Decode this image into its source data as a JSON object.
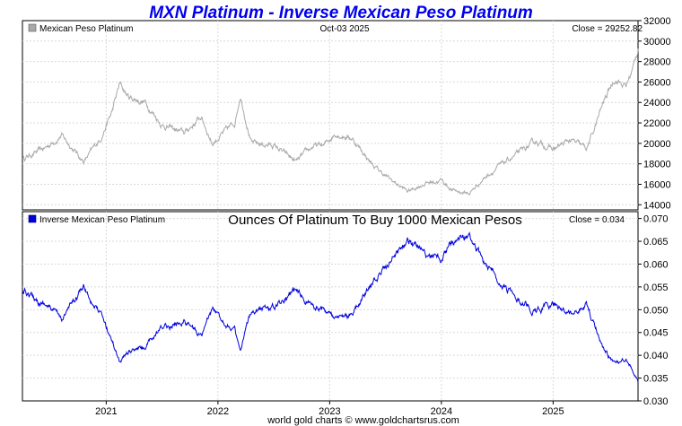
{
  "chart_data": {
    "type": "line",
    "title": "MXN Platinum - Inverse Mexican Peso Platinum",
    "date_label": "Oct-03  2025",
    "footer": "world gold charts © www.goldchartsrus.com",
    "x_ticks": [
      "2021",
      "2022",
      "2023",
      "2024",
      "2025"
    ],
    "x_tick_values": [
      2021.0,
      2022.0,
      2023.0,
      2024.0,
      2025.0
    ],
    "xlim": [
      2020.25,
      2025.76
    ],
    "colors": {
      "top_series": "#a9a9a9",
      "bottom_series": "#0000dd",
      "grid": "#d9d9d9",
      "title": "#0000ee"
    },
    "panels": [
      {
        "legend": "Mexican Peso Platinum",
        "subtitle": "",
        "close_label": "Close = 29252.82",
        "ylim": [
          13500,
          32000
        ],
        "y_ticks": [
          "32000",
          "30000",
          "28000",
          "26000",
          "24000",
          "22000",
          "20000",
          "18000",
          "16000",
          "14000"
        ],
        "y_tick_values": [
          32000,
          30000,
          28000,
          26000,
          24000,
          22000,
          20000,
          18000,
          16000,
          14000
        ],
        "x": [
          2020.25,
          2020.45,
          2020.6,
          2020.8,
          2020.95,
          2021.05,
          2021.12,
          2021.2,
          2021.35,
          2021.5,
          2021.7,
          2021.85,
          2021.95,
          2022.05,
          2022.15,
          2022.2,
          2022.3,
          2022.5,
          2022.7,
          2022.85,
          2022.95,
          2023.05,
          2023.2,
          2023.4,
          2023.55,
          2023.7,
          2023.85,
          2024.0,
          2024.1,
          2024.25,
          2024.4,
          2024.55,
          2024.7,
          2024.85,
          2025.0,
          2025.15,
          2025.3,
          2025.35,
          2025.45,
          2025.55,
          2025.65,
          2025.72,
          2025.76
        ],
        "values": [
          18500,
          19500,
          20800,
          18200,
          20500,
          23000,
          25800,
          24500,
          24000,
          21800,
          21000,
          22600,
          20000,
          21000,
          22000,
          24800,
          20000,
          19800,
          18200,
          19700,
          19800,
          21000,
          20500,
          17700,
          16400,
          15300,
          16100,
          16400,
          15400,
          15100,
          16800,
          18000,
          19100,
          20200,
          19400,
          20300,
          19500,
          20800,
          24000,
          26400,
          25500,
          27500,
          29252.82
        ]
      },
      {
        "legend": "Inverse Mexican Peso Platinum",
        "subtitle": "Ounces Of Platinum To Buy 1000 Mexican Pesos",
        "close_label": "Close = 0.034",
        "ylim": [
          0.03,
          0.0715
        ],
        "y_ticks": [
          "0.070",
          "0.065",
          "0.060",
          "0.055",
          "0.050",
          "0.045",
          "0.040",
          "0.035",
          "0.030"
        ],
        "y_tick_values": [
          0.07,
          0.065,
          0.06,
          0.055,
          0.05,
          0.045,
          0.04,
          0.035,
          0.03
        ],
        "x": [
          2020.25,
          2020.45,
          2020.6,
          2020.8,
          2020.95,
          2021.05,
          2021.12,
          2021.2,
          2021.35,
          2021.5,
          2021.7,
          2021.85,
          2021.95,
          2022.05,
          2022.15,
          2022.2,
          2022.3,
          2022.5,
          2022.7,
          2022.85,
          2022.95,
          2023.05,
          2023.2,
          2023.4,
          2023.55,
          2023.7,
          2023.85,
          2024.0,
          2024.1,
          2024.25,
          2024.4,
          2024.55,
          2024.7,
          2024.85,
          2025.0,
          2025.15,
          2025.3,
          2025.35,
          2025.45,
          2025.55,
          2025.65,
          2025.72,
          2025.76
        ],
        "values": [
          0.054,
          0.0513,
          0.048,
          0.055,
          0.0488,
          0.0435,
          0.0388,
          0.0408,
          0.0417,
          0.0459,
          0.0476,
          0.0442,
          0.05,
          0.0476,
          0.0455,
          0.0403,
          0.05,
          0.0505,
          0.055,
          0.0508,
          0.0505,
          0.0476,
          0.0488,
          0.0565,
          0.061,
          0.0654,
          0.0621,
          0.061,
          0.065,
          0.0662,
          0.0595,
          0.0556,
          0.0524,
          0.0495,
          0.0515,
          0.0493,
          0.0513,
          0.048,
          0.0417,
          0.0379,
          0.0392,
          0.0364,
          0.034
        ]
      }
    ]
  }
}
